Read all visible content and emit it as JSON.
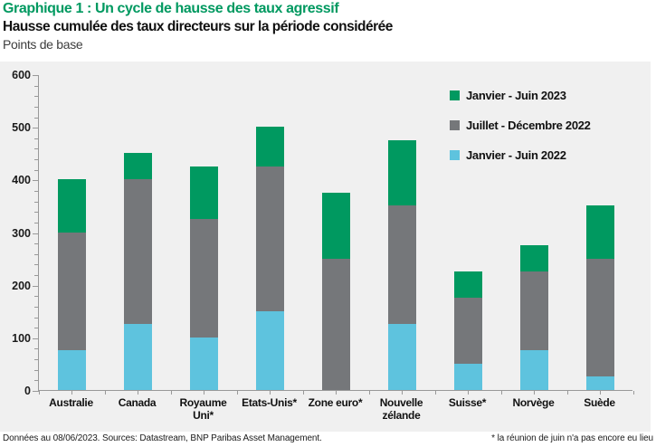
{
  "header": {
    "title": "Graphique 1 : Un cycle de hausse des taux agressif",
    "subtitle": "Hausse cumulée des taux directeurs sur la période considérée",
    "unit_label": "Points de base"
  },
  "chart_data": {
    "type": "bar",
    "stacked": true,
    "title": "Hausse cumulée des taux directeurs sur la période considérée",
    "ylabel": "Points de base",
    "ylim": [
      0,
      600
    ],
    "y_major_tick_interval": 100,
    "y_minor_tick_interval": 20,
    "grid": false,
    "legend_position": "top-right",
    "categories": [
      "Australie",
      "Canada",
      "Royaume Uni*",
      "Etats-Unis*",
      "Zone euro*",
      "Nouvelle zélande",
      "Suisse*",
      "Norvège",
      "Suède"
    ],
    "series": [
      {
        "name": "Janvier - Juin 2022",
        "color": "#5EC3DE",
        "values": [
          75,
          125,
          100,
          150,
          0,
          125,
          50,
          75,
          25
        ]
      },
      {
        "name": "Juillet - Décembre 2022",
        "color": "#75777A",
        "values": [
          225,
          275,
          225,
          275,
          250,
          225,
          125,
          150,
          225
        ]
      },
      {
        "name": "Janvier - Juin 2023",
        "color": "#009960",
        "values": [
          100,
          50,
          100,
          75,
          125,
          125,
          50,
          50,
          100
        ]
      }
    ],
    "totals": [
      400,
      450,
      425,
      500,
      375,
      475,
      225,
      275,
      350
    ],
    "legend": [
      {
        "label": "Janvier - Juin 2023",
        "color": "#009960"
      },
      {
        "label": "Juillet - Décembre 2022",
        "color": "#75777A"
      },
      {
        "label": "Janvier - Juin 2022",
        "color": "#5EC3DE"
      }
    ]
  },
  "footer": {
    "source": "Données au 08/06/2023. Sources: Datastream, BNP Paribas Asset Management.",
    "note": "* la réunion de juin n'a pas encore eu lieu"
  },
  "colors": {
    "title_green": "#009960",
    "panel_background": "#F0F0F0",
    "axis": "#999999",
    "text": "#1A1A1A"
  }
}
